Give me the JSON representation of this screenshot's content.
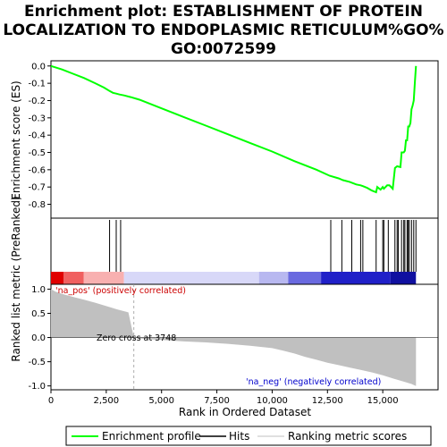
{
  "chart_data": {
    "type": "line",
    "title_lines": [
      "Enrichment plot: ESTABLISHMENT OF PROTEIN",
      "LOCALIZATION TO ENDOPLASMIC RETICULUM%GO%",
      "GO:0072599"
    ],
    "es_panel": {
      "ylabel": "Enrichment score (ES)",
      "ylim": [
        -0.88,
        0.03
      ],
      "yticks": [
        0.0,
        -0.1,
        -0.2,
        -0.3,
        -0.4,
        -0.5,
        -0.6,
        -0.7,
        -0.8
      ],
      "ytick_labels": [
        "0.0",
        "-0.1",
        "-0.2",
        "-0.3",
        "-0.4",
        "-0.5",
        "-0.6",
        "-0.7",
        "-0.8"
      ],
      "series": [
        {
          "name": "Enrichment profile",
          "color": "#00ff00",
          "x": [
            0,
            500,
            1000,
            1500,
            2000,
            2400,
            2650,
            2800,
            2950,
            3100,
            3300,
            3600,
            4000,
            5000,
            6000,
            7000,
            8000,
            9000,
            10000,
            11000,
            12000,
            12600,
            13000,
            13200,
            13500,
            13800,
            14000,
            14100,
            14300,
            14500,
            14700,
            14750,
            14900,
            15000,
            15050,
            15200,
            15300,
            15450,
            15550,
            15650,
            15800,
            15850,
            15950,
            16000,
            16050,
            16100,
            16150,
            16200,
            16250,
            16300,
            16350,
            16400,
            16450,
            16500
          ],
          "y": [
            0.0,
            -0.02,
            -0.045,
            -0.07,
            -0.1,
            -0.125,
            -0.145,
            -0.155,
            -0.16,
            -0.165,
            -0.17,
            -0.18,
            -0.195,
            -0.245,
            -0.295,
            -0.345,
            -0.395,
            -0.445,
            -0.495,
            -0.55,
            -0.6,
            -0.635,
            -0.65,
            -0.66,
            -0.67,
            -0.685,
            -0.69,
            -0.695,
            -0.705,
            -0.72,
            -0.73,
            -0.7,
            -0.715,
            -0.7,
            -0.71,
            -0.69,
            -0.69,
            -0.71,
            -0.59,
            -0.58,
            -0.585,
            -0.5,
            -0.5,
            -0.49,
            -0.43,
            -0.43,
            -0.35,
            -0.35,
            -0.33,
            -0.25,
            -0.23,
            -0.2,
            -0.1,
            0.0
          ]
        }
      ],
      "grid": false
    },
    "hits": [
      2650,
      2950,
      3150,
      12650,
      13150,
      13600,
      14000,
      14100,
      14700,
      15000,
      15050,
      15250,
      15550,
      15650,
      15700,
      15850,
      15950,
      16000,
      16100,
      16150,
      16200,
      16300,
      16400,
      16500
    ],
    "ranked_panel": {
      "ylabel": "Ranked list metric (PreRanked)",
      "ylim": [
        -1.08,
        1.1
      ],
      "yticks": [
        1.0,
        0.5,
        0.0,
        -0.5,
        -1.0
      ],
      "ytick_labels": [
        "1.0",
        "0.5",
        "0.0",
        "-0.5",
        "-1.0"
      ],
      "metric_x": [
        0,
        200,
        500,
        1000,
        1500,
        2000,
        2500,
        3000,
        3500,
        3748,
        4000,
        5000,
        6000,
        7000,
        8000,
        9000,
        10000,
        10500,
        11000,
        11500,
        12000,
        12500,
        13000,
        13500,
        14000,
        14500,
        15000,
        15500,
        16000,
        16300,
        16500
      ],
      "metric_y": [
        1.0,
        0.95,
        0.9,
        0.84,
        0.78,
        0.72,
        0.65,
        0.58,
        0.52,
        0.0,
        -0.02,
        -0.05,
        -0.08,
        -0.1,
        -0.13,
        -0.17,
        -0.22,
        -0.27,
        -0.33,
        -0.4,
        -0.46,
        -0.52,
        -0.57,
        -0.62,
        -0.67,
        -0.72,
        -0.78,
        -0.85,
        -0.92,
        -0.96,
        -1.0
      ],
      "pos_label": "'na_pos' (positively correlated)",
      "neg_label": "'na_neg' (negatively correlated)",
      "zero_cross_label": "Zero cross at 3748",
      "zero_cross": 3748
    },
    "heatbar_colors": [
      "#e00000",
      "#f06060",
      "#f8b0b0",
      "#d8d8f8",
      "#b8b8f0",
      "#6a6ae0",
      "#2020c8",
      "#1010a0"
    ],
    "xlabel": "Rank in Ordered Dataset",
    "xlim": [
      0,
      17500
    ],
    "xticks": [
      0,
      2500,
      5000,
      7500,
      10000,
      12500,
      15000
    ],
    "xtick_labels": [
      "0",
      "2,500",
      "5,000",
      "7,500",
      "10,000",
      "12,500",
      "15,000"
    ],
    "legend": [
      {
        "label": "Enrichment profile",
        "color": "#00ff00"
      },
      {
        "label": "Hits",
        "color": "#000000"
      },
      {
        "label": "Ranking metric scores",
        "color": "#c0c0c0"
      }
    ]
  }
}
